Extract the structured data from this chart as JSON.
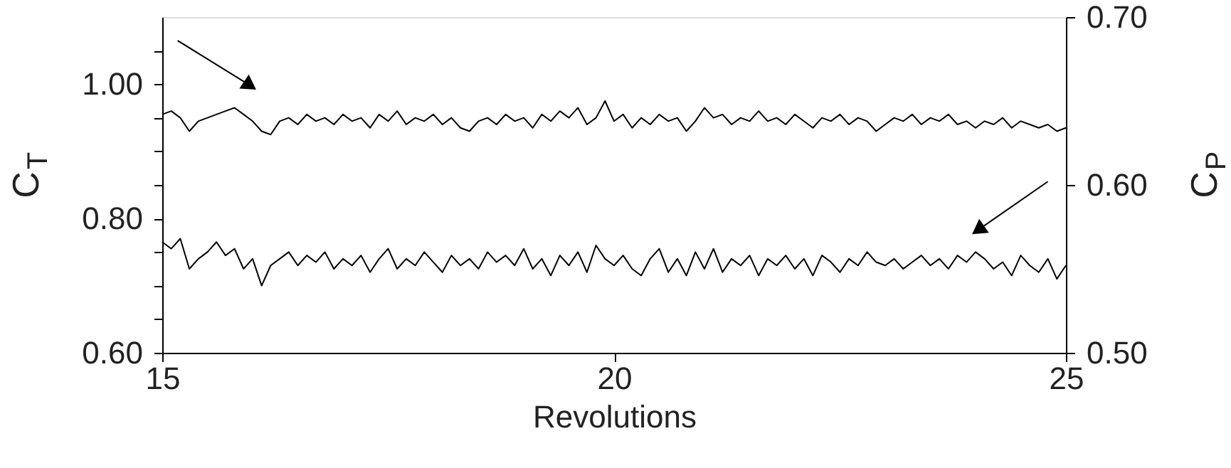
{
  "chart_data": {
    "type": "line",
    "xlabel": "Revolutions",
    "ylabel": "C$_{T}$",
    "y2label": "C$_{P}$",
    "xlim": [
      15,
      25
    ],
    "xticks": [
      15,
      20,
      25
    ],
    "ylim": [
      0.6,
      1.1
    ],
    "yticks": [
      {
        "value": 0.6,
        "label": "0.60"
      },
      {
        "value": 0.8,
        "label": "0.80"
      },
      {
        "value": 1.0,
        "label": "1.00"
      },
      {
        "value": 0.65,
        "label": null
      },
      {
        "value": 0.7,
        "label": null
      },
      {
        "value": 0.75,
        "label": null
      },
      {
        "value": 0.85,
        "label": null
      },
      {
        "value": 0.9,
        "label": null
      },
      {
        "value": 0.95,
        "label": null
      },
      {
        "value": 1.05,
        "label": null
      }
    ],
    "y2lim": [
      0.5,
      0.7
    ],
    "y2ticks": [
      {
        "value": 0.5,
        "label": "0.50"
      },
      {
        "value": 0.6,
        "label": "0.60"
      },
      {
        "value": 0.7,
        "label": "0.70"
      }
    ],
    "grid": false,
    "line_style": "solid",
    "marker": "none",
    "x": [
      15.0,
      15.1,
      15.2,
      15.3,
      15.4,
      15.5,
      15.6,
      15.7,
      15.8,
      15.9,
      16.0,
      16.1,
      16.2,
      16.3,
      16.4,
      16.5,
      16.6,
      16.7,
      16.8,
      16.9,
      17.0,
      17.1,
      17.2,
      17.3,
      17.4,
      17.5,
      17.6,
      17.7,
      17.8,
      17.9,
      18.0,
      18.1,
      18.2,
      18.3,
      18.4,
      18.5,
      18.6,
      18.7,
      18.8,
      18.9,
      19.0,
      19.1,
      19.2,
      19.3,
      19.4,
      19.5,
      19.6,
      19.7,
      19.8,
      19.9,
      20.0,
      20.1,
      20.2,
      20.3,
      20.4,
      20.5,
      20.6,
      20.7,
      20.8,
      20.9,
      21.0,
      21.1,
      21.2,
      21.3,
      21.4,
      21.5,
      21.6,
      21.7,
      21.8,
      21.9,
      22.0,
      22.1,
      22.2,
      22.3,
      22.4,
      22.5,
      22.6,
      22.7,
      22.8,
      22.9,
      23.0,
      23.1,
      23.2,
      23.3,
      23.4,
      23.5,
      23.6,
      23.7,
      23.8,
      23.9,
      24.0,
      24.1,
      24.2,
      24.3,
      24.4,
      24.5,
      24.6,
      24.7,
      24.8,
      24.9,
      25.0
    ],
    "series": [
      {
        "color": "#000000",
        "axis": "y",
        "values": [
          0.955,
          0.96,
          0.95,
          0.93,
          0.945,
          0.95,
          0.955,
          0.96,
          0.965,
          0.955,
          0.945,
          0.93,
          0.925,
          0.945,
          0.95,
          0.94,
          0.955,
          0.945,
          0.95,
          0.94,
          0.955,
          0.945,
          0.95,
          0.935,
          0.955,
          0.945,
          0.96,
          0.94,
          0.95,
          0.945,
          0.955,
          0.94,
          0.95,
          0.935,
          0.93,
          0.945,
          0.95,
          0.94,
          0.955,
          0.945,
          0.95,
          0.935,
          0.955,
          0.945,
          0.96,
          0.95,
          0.965,
          0.94,
          0.95,
          0.975,
          0.945,
          0.955,
          0.935,
          0.95,
          0.94,
          0.955,
          0.945,
          0.95,
          0.93,
          0.945,
          0.965,
          0.95,
          0.955,
          0.94,
          0.95,
          0.945,
          0.96,
          0.945,
          0.95,
          0.94,
          0.955,
          0.945,
          0.935,
          0.95,
          0.945,
          0.955,
          0.94,
          0.95,
          0.945,
          0.93,
          0.94,
          0.95,
          0.945,
          0.955,
          0.94,
          0.95,
          0.945,
          0.955,
          0.94,
          0.945,
          0.935,
          0.945,
          0.94,
          0.95,
          0.935,
          0.945,
          0.94,
          0.935,
          0.94,
          0.93,
          0.935
        ]
      },
      {
        "color": "#000000",
        "axis": "y2",
        "values": [
          0.566,
          0.562,
          0.568,
          0.55,
          0.556,
          0.56,
          0.566,
          0.558,
          0.562,
          0.55,
          0.556,
          0.54,
          0.552,
          0.556,
          0.56,
          0.552,
          0.558,
          0.554,
          0.56,
          0.55,
          0.556,
          0.552,
          0.558,
          0.548,
          0.556,
          0.562,
          0.55,
          0.556,
          0.552,
          0.56,
          0.554,
          0.548,
          0.558,
          0.552,
          0.556,
          0.55,
          0.56,
          0.554,
          0.558,
          0.552,
          0.562,
          0.55,
          0.556,
          0.546,
          0.558,
          0.552,
          0.56,
          0.548,
          0.564,
          0.556,
          0.552,
          0.558,
          0.55,
          0.546,
          0.556,
          0.562,
          0.548,
          0.556,
          0.546,
          0.56,
          0.55,
          0.562,
          0.548,
          0.556,
          0.552,
          0.558,
          0.546,
          0.556,
          0.552,
          0.558,
          0.55,
          0.556,
          0.546,
          0.558,
          0.554,
          0.548,
          0.556,
          0.552,
          0.56,
          0.554,
          0.552,
          0.556,
          0.55,
          0.554,
          0.558,
          0.552,
          0.556,
          0.55,
          0.558,
          0.554,
          0.56,
          0.556,
          0.55,
          0.554,
          0.546,
          0.558,
          0.552,
          0.548,
          0.556,
          0.544,
          0.552
        ]
      }
    ]
  }
}
